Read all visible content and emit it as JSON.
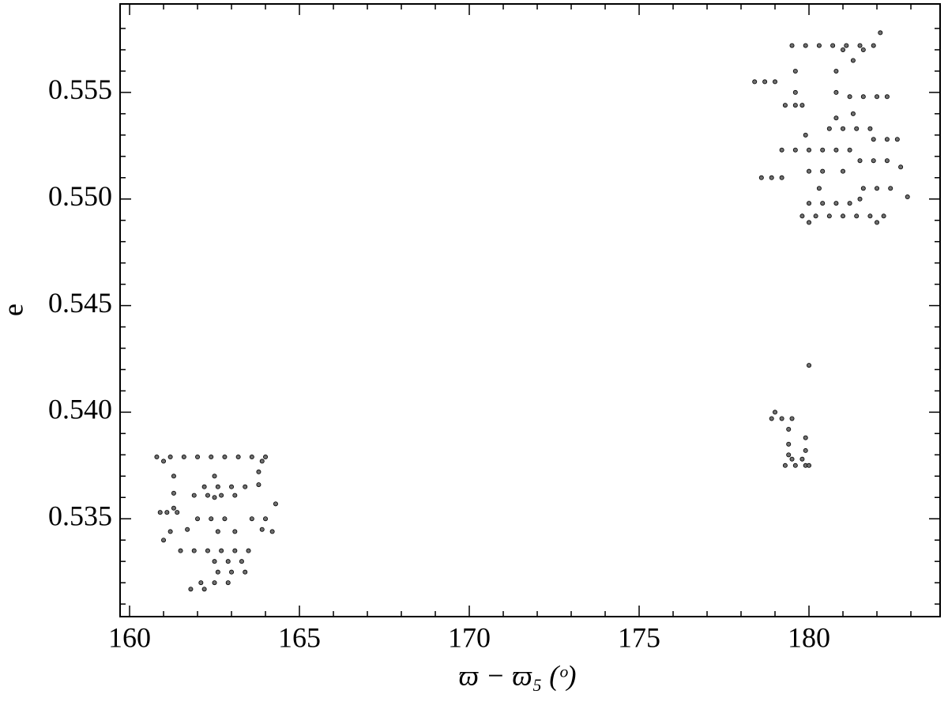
{
  "chart_data": {
    "type": "scatter",
    "x_label": "ϖ − ϖ₅ (ᵒ)",
    "y_label": "e",
    "xlim": [
      159.72,
      183.86
    ],
    "ylim": [
      0.53041,
      0.55915
    ],
    "xticks": [
      160,
      165,
      170,
      175,
      180
    ],
    "yticks": [
      {
        "value": 0.535,
        "label": "0.535"
      },
      {
        "value": 0.54,
        "label": "0.540"
      },
      {
        "value": 0.545,
        "label": "0.545"
      },
      {
        "value": 0.55,
        "label": "0.550"
      },
      {
        "value": 0.555,
        "label": "0.555"
      }
    ],
    "xminorticks": [
      161,
      162,
      163,
      164,
      166,
      167,
      168,
      169,
      171,
      172,
      173,
      174,
      176,
      177,
      178,
      179,
      181,
      182,
      183
    ],
    "yminorticks": [
      0.531,
      0.532,
      0.533,
      0.534,
      0.536,
      0.537,
      0.538,
      0.539,
      0.541,
      0.542,
      0.543,
      0.544,
      0.546,
      0.547,
      0.548,
      0.549,
      0.551,
      0.552,
      0.553,
      0.554,
      0.556,
      0.557,
      0.558
    ],
    "color": "#6e6e6e",
    "x": [
      160.8,
      161.2,
      161.6,
      162.0,
      162.4,
      162.8,
      163.2,
      163.6,
      164.0,
      161.0,
      163.9,
      161.3,
      161.3,
      161.3,
      162.5,
      162.5,
      163.8,
      163.8,
      162.2,
      162.6,
      163.0,
      163.4,
      161.9,
      162.3,
      162.7,
      163.1,
      160.9,
      161.1,
      161.4,
      162.0,
      162.4,
      162.8,
      163.6,
      164.0,
      161.2,
      162.6,
      163.1,
      164.2,
      161.5,
      161.9,
      162.3,
      162.7,
      163.1,
      163.5,
      162.5,
      162.9,
      163.3,
      162.6,
      163.0,
      163.4,
      162.1,
      162.5,
      162.9,
      161.8,
      162.2,
      161.0,
      164.3,
      163.9,
      161.7,
      179.5,
      179.9,
      180.3,
      180.7,
      181.1,
      181.5,
      181.9,
      181.0,
      181.6,
      178.4,
      178.7,
      179.0,
      179.3,
      179.6,
      179.8,
      179.6,
      179.6,
      180.8,
      180.8,
      180.8,
      181.3,
      181.3,
      181.2,
      181.6,
      182.0,
      182.3,
      180.6,
      181.0,
      181.4,
      181.8,
      181.9,
      182.3,
      182.6,
      179.2,
      179.6,
      180.0,
      180.4,
      180.8,
      181.2,
      181.5,
      181.9,
      182.3,
      180.0,
      180.4,
      181.0,
      178.6,
      178.9,
      179.2,
      181.6,
      182.0,
      182.4,
      180.0,
      180.4,
      180.8,
      181.2,
      179.8,
      180.2,
      180.6,
      181.0,
      181.4,
      181.8,
      182.2,
      180.0,
      182.0,
      182.9,
      179.9,
      180.3,
      182.7,
      181.5,
      178.9,
      179.2,
      179.5,
      179.0,
      179.4,
      179.4,
      179.4,
      179.9,
      179.9,
      179.3,
      179.6,
      179.9,
      180.0,
      179.5,
      179.8,
      180.0,
      182.1
    ],
    "y": [
      0.5379,
      0.5379,
      0.5379,
      0.5379,
      0.5379,
      0.5379,
      0.5379,
      0.5379,
      0.5379,
      0.5377,
      0.5377,
      0.537,
      0.5362,
      0.5355,
      0.537,
      0.536,
      0.5372,
      0.5366,
      0.5365,
      0.5365,
      0.5365,
      0.5365,
      0.5361,
      0.5361,
      0.5361,
      0.5361,
      0.5353,
      0.5353,
      0.5353,
      0.535,
      0.535,
      0.535,
      0.535,
      0.535,
      0.5344,
      0.5344,
      0.5344,
      0.5344,
      0.5335,
      0.5335,
      0.5335,
      0.5335,
      0.5335,
      0.5335,
      0.533,
      0.533,
      0.533,
      0.5325,
      0.5325,
      0.5325,
      0.532,
      0.532,
      0.532,
      0.5317,
      0.5317,
      0.534,
      0.5357,
      0.5345,
      0.5345,
      0.5572,
      0.5572,
      0.5572,
      0.5572,
      0.5572,
      0.5572,
      0.5572,
      0.557,
      0.557,
      0.5555,
      0.5555,
      0.5555,
      0.5544,
      0.5544,
      0.5544,
      0.556,
      0.555,
      0.556,
      0.555,
      0.5538,
      0.5565,
      0.554,
      0.5548,
      0.5548,
      0.5548,
      0.5548,
      0.5533,
      0.5533,
      0.5533,
      0.5533,
      0.5528,
      0.5528,
      0.5528,
      0.5523,
      0.5523,
      0.5523,
      0.5523,
      0.5523,
      0.5523,
      0.5518,
      0.5518,
      0.5518,
      0.5513,
      0.5513,
      0.5513,
      0.551,
      0.551,
      0.551,
      0.5505,
      0.5505,
      0.5505,
      0.5498,
      0.5498,
      0.5498,
      0.5498,
      0.5492,
      0.5492,
      0.5492,
      0.5492,
      0.5492,
      0.5492,
      0.5492,
      0.5489,
      0.5489,
      0.5501,
      0.553,
      0.5505,
      0.5515,
      0.55,
      0.5397,
      0.5397,
      0.5397,
      0.54,
      0.5392,
      0.5385,
      0.538,
      0.5388,
      0.5382,
      0.5375,
      0.5375,
      0.5375,
      0.5375,
      0.5378,
      0.5378,
      0.5422,
      0.5578
    ]
  }
}
